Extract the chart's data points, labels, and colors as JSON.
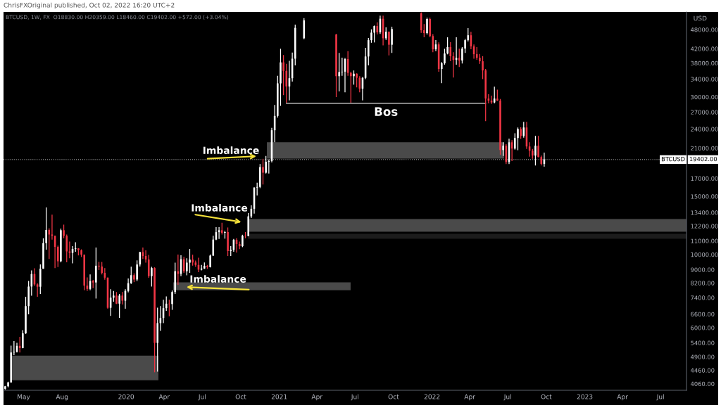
{
  "chart_data": {
    "type": "candlestick",
    "title": "ChrisFXOriginal published, Oct 02, 2022 16:20 UTC+2",
    "subtitle": "BTCUSD, 1W, FX  O18830.00 H20359.00 L18460.00 C19402.00 +572.00 (+3.04%)",
    "ylabel": "USD",
    "log": true,
    "x": [
      "2019-03-18",
      "2019-03-25",
      "2019-04-01",
      "2019-04-08",
      "2019-04-15",
      "2019-04-22",
      "2019-04-29",
      "2019-05-06",
      "2019-05-13",
      "2019-05-20",
      "2019-05-27",
      "2019-06-03",
      "2019-06-10",
      "2019-06-17",
      "2019-06-24",
      "2019-07-01",
      "2019-07-08",
      "2019-07-15",
      "2019-07-22",
      "2019-07-29",
      "2019-08-05",
      "2019-08-12",
      "2019-08-19",
      "2019-08-26",
      "2019-09-02",
      "2019-09-09",
      "2019-09-16",
      "2019-09-23",
      "2019-09-30",
      "2019-10-07",
      "2019-10-14",
      "2019-10-21",
      "2019-10-28",
      "2019-11-04",
      "2019-11-11",
      "2019-11-18",
      "2019-11-25",
      "2019-12-02",
      "2019-12-09",
      "2019-12-16",
      "2019-12-23",
      "2019-12-30",
      "2020-01-06",
      "2020-01-13",
      "2020-01-20",
      "2020-01-27",
      "2020-02-03",
      "2020-02-10",
      "2020-02-17",
      "2020-02-24",
      "2020-03-02",
      "2020-03-09",
      "2020-03-16",
      "2020-03-23",
      "2020-03-30",
      "2020-04-06",
      "2020-04-13",
      "2020-04-20",
      "2020-04-27",
      "2020-05-04",
      "2020-05-11",
      "2020-05-18",
      "2020-05-25",
      "2020-06-01",
      "2020-06-08",
      "2020-06-15",
      "2020-06-22",
      "2020-06-29",
      "2020-07-06",
      "2020-07-13",
      "2020-07-20",
      "2020-07-27",
      "2020-08-03",
      "2020-08-10",
      "2020-08-17",
      "2020-08-24",
      "2020-08-31",
      "2020-09-07",
      "2020-09-14",
      "2020-09-21",
      "2020-09-28",
      "2020-10-05",
      "2020-10-12",
      "2020-10-19",
      "2020-10-26",
      "2020-11-02",
      "2020-11-09",
      "2020-11-16",
      "2020-11-23",
      "2020-11-30",
      "2020-12-07",
      "2020-12-14",
      "2020-12-21",
      "2020-12-28",
      "2021-01-04",
      "2021-01-11",
      "2021-01-18",
      "2021-01-25",
      "2021-02-01",
      "2021-02-08",
      "2021-03-01",
      "2021-05-17",
      "2021-05-24",
      "2021-05-31",
      "2021-06-07",
      "2021-06-14",
      "2021-06-21",
      "2021-06-28",
      "2021-07-05",
      "2021-07-12",
      "2021-07-19",
      "2021-07-26",
      "2021-08-02",
      "2021-08-09",
      "2021-08-16",
      "2021-08-23",
      "2021-08-30",
      "2021-09-06",
      "2021-09-13",
      "2021-09-20",
      "2021-09-27",
      "2021-12-06",
      "2021-12-13",
      "2021-12-20",
      "2021-12-27",
      "2022-01-03",
      "2022-01-10",
      "2022-01-17",
      "2022-01-24",
      "2022-01-31",
      "2022-02-07",
      "2022-02-14",
      "2022-02-21",
      "2022-02-28",
      "2022-03-07",
      "2022-03-14",
      "2022-03-21",
      "2022-03-28",
      "2022-04-04",
      "2022-04-11",
      "2022-04-18",
      "2022-04-25",
      "2022-05-02",
      "2022-05-09",
      "2022-05-16",
      "2022-05-23",
      "2022-05-30",
      "2022-06-06",
      "2022-06-13",
      "2022-06-20",
      "2022-06-27",
      "2022-07-04",
      "2022-07-11",
      "2022-07-18",
      "2022-07-25",
      "2022-08-01",
      "2022-08-08",
      "2022-08-15",
      "2022-08-22",
      "2022-08-29",
      "2022-09-05",
      "2022-09-12",
      "2022-09-19",
      "2022-09-26"
    ],
    "ohlc": [
      [
        3920,
        4000,
        3900,
        3990
      ],
      [
        3990,
        4120,
        3960,
        4100
      ],
      [
        4100,
        5300,
        4090,
        5050
      ],
      [
        5050,
        5470,
        4960,
        5070
      ],
      [
        5070,
        5400,
        5050,
        5290
      ],
      [
        5290,
        5630,
        5050,
        5210
      ],
      [
        5210,
        5900,
        5200,
        5770
      ],
      [
        5770,
        7450,
        5750,
        6980
      ],
      [
        6980,
        8320,
        6590,
        8000
      ],
      [
        8000,
        8950,
        7500,
        8730
      ],
      [
        8730,
        9090,
        8040,
        8120
      ],
      [
        8120,
        8180,
        7450,
        7990
      ],
      [
        7990,
        9330,
        7600,
        9060
      ],
      [
        9060,
        11200,
        9050,
        10830
      ],
      [
        10830,
        13880,
        10350,
        11870
      ],
      [
        11870,
        12000,
        9700,
        11500
      ],
      [
        11500,
        13200,
        11100,
        11400
      ],
      [
        11400,
        11400,
        9100,
        10550
      ],
      [
        10550,
        10650,
        9170,
        9540
      ],
      [
        9540,
        11980,
        9470,
        11850
      ],
      [
        11850,
        12320,
        11200,
        11390
      ],
      [
        11390,
        11500,
        9470,
        10220
      ],
      [
        10220,
        10950,
        9750,
        10120
      ],
      [
        10120,
        10600,
        9400,
        10400
      ],
      [
        10400,
        10900,
        10200,
        10440
      ],
      [
        10440,
        10450,
        9940,
        10300
      ],
      [
        10300,
        10370,
        9830,
        9990
      ],
      [
        9990,
        10000,
        7800,
        8050
      ],
      [
        8050,
        8530,
        7760,
        7870
      ],
      [
        7870,
        8700,
        7800,
        8310
      ],
      [
        8310,
        8380,
        7910,
        8230
      ],
      [
        8230,
        10500,
        7360,
        9250
      ],
      [
        9250,
        9500,
        8980,
        9200
      ],
      [
        9200,
        9500,
        8700,
        8800
      ],
      [
        8800,
        9100,
        8390,
        8510
      ],
      [
        8510,
        8530,
        6850,
        6900
      ],
      [
        6900,
        7850,
        6520,
        7400
      ],
      [
        7400,
        7760,
        7200,
        7510
      ],
      [
        7510,
        7700,
        7080,
        7100
      ],
      [
        7100,
        7600,
        6430,
        7510
      ],
      [
        7510,
        7700,
        7060,
        7250
      ],
      [
        7250,
        7850,
        6850,
        7760
      ],
      [
        7760,
        8460,
        7680,
        8190
      ],
      [
        8190,
        9190,
        8150,
        8660
      ],
      [
        8660,
        8770,
        8250,
        8400
      ],
      [
        8400,
        9600,
        8300,
        9330
      ],
      [
        9330,
        10200,
        9200,
        10170
      ],
      [
        10170,
        10500,
        9700,
        9900
      ],
      [
        9900,
        10300,
        9450,
        9660
      ],
      [
        9660,
        9970,
        8500,
        8600
      ],
      [
        8600,
        9180,
        8000,
        9100
      ],
      [
        9100,
        9150,
        4400,
        5400
      ],
      [
        5400,
        6900,
        4420,
        6200
      ],
      [
        6200,
        6980,
        5870,
        6420
      ],
      [
        6420,
        7300,
        6200,
        6880
      ],
      [
        6880,
        7470,
        6750,
        7100
      ],
      [
        7100,
        7300,
        6500,
        7080
      ],
      [
        7080,
        7780,
        6800,
        7700
      ],
      [
        7700,
        9450,
        7600,
        8900
      ],
      [
        8900,
        10000,
        8100,
        8740
      ],
      [
        8740,
        9950,
        8600,
        9680
      ],
      [
        9680,
        9840,
        8800,
        8900
      ],
      [
        8900,
        9750,
        8650,
        9450
      ],
      [
        9450,
        10400,
        8800,
        9650
      ],
      [
        9650,
        9990,
        9250,
        9460
      ],
      [
        9460,
        9590,
        9180,
        9300
      ],
      [
        9300,
        9780,
        8850,
        9000
      ],
      [
        9000,
        9300,
        8950,
        9070
      ],
      [
        9070,
        9460,
        9040,
        9240
      ],
      [
        9240,
        9300,
        9050,
        9160
      ],
      [
        9160,
        10000,
        9140,
        9930
      ],
      [
        9930,
        11400,
        9900,
        11100
      ],
      [
        11100,
        12100,
        11050,
        11690
      ],
      [
        11690,
        12100,
        11150,
        11850
      ],
      [
        11850,
        12480,
        11500,
        11640
      ],
      [
        11640,
        11800,
        11170,
        11700
      ],
      [
        11700,
        12080,
        9900,
        10250
      ],
      [
        10250,
        10600,
        9900,
        10330
      ],
      [
        10330,
        11150,
        10200,
        11080
      ],
      [
        11080,
        11200,
        10140,
        10760
      ],
      [
        10760,
        10950,
        10380,
        10600
      ],
      [
        10600,
        11480,
        10530,
        11400
      ],
      [
        11400,
        11700,
        11200,
        11370
      ],
      [
        11370,
        13350,
        11360,
        13050
      ],
      [
        13050,
        14100,
        12900,
        13760
      ],
      [
        13760,
        16000,
        13300,
        15950
      ],
      [
        15950,
        16500,
        15100,
        16030
      ],
      [
        16030,
        18800,
        15900,
        18400
      ],
      [
        18400,
        19500,
        16300,
        17700
      ],
      [
        17700,
        19900,
        17600,
        19100
      ],
      [
        19100,
        19400,
        17600,
        19200
      ],
      [
        19200,
        24200,
        19000,
        23800
      ],
      [
        23800,
        28400,
        21900,
        26300
      ],
      [
        26300,
        34800,
        26000,
        33000
      ],
      [
        33000,
        42000,
        28200,
        38200
      ],
      [
        38200,
        40200,
        30400,
        36000
      ],
      [
        36000,
        37800,
        28800,
        32300
      ],
      [
        32300,
        38600,
        29300,
        34200
      ],
      [
        34200,
        40900,
        33400,
        39200
      ],
      [
        39200,
        49700,
        37400,
        48600
      ],
      [
        45200,
        52000,
        44900,
        51200
      ],
      [
        46400,
        46600,
        30000,
        34700
      ],
      [
        34700,
        40800,
        31200,
        35700
      ],
      [
        35700,
        39500,
        34800,
        35800
      ],
      [
        35800,
        39400,
        31000,
        39100
      ],
      [
        39100,
        41300,
        34800,
        35500
      ],
      [
        35500,
        35800,
        28800,
        34700
      ],
      [
        34700,
        36100,
        32700,
        35300
      ],
      [
        35300,
        35400,
        32100,
        34300
      ],
      [
        34300,
        34700,
        31000,
        31800
      ],
      [
        31800,
        34500,
        29300,
        34300
      ],
      [
        34300,
        42300,
        34000,
        39800
      ],
      [
        39800,
        45300,
        37400,
        44600
      ],
      [
        44600,
        48100,
        43800,
        47000
      ],
      [
        47000,
        49400,
        43900,
        49200
      ],
      [
        49200,
        50500,
        46400,
        47100
      ],
      [
        47100,
        52900,
        46600,
        51800
      ],
      [
        51800,
        52900,
        43000,
        45200
      ],
      [
        45200,
        48800,
        44700,
        47300
      ],
      [
        47300,
        47400,
        40100,
        43200
      ],
      [
        43200,
        49000,
        40800,
        48200
      ],
      [
        53760,
        54200,
        46900,
        47800
      ],
      [
        47800,
        49900,
        45500,
        46850
      ],
      [
        46850,
        52200,
        46400,
        51700
      ],
      [
        51700,
        52200,
        45500,
        45900
      ],
      [
        45900,
        46500,
        41000,
        41850
      ],
      [
        41850,
        44600,
        41300,
        43300
      ],
      [
        43300,
        43900,
        35800,
        36480
      ],
      [
        36480,
        38300,
        33050,
        37950
      ],
      [
        37950,
        42000,
        37600,
        40640
      ],
      [
        40640,
        45500,
        40400,
        42500
      ],
      [
        42500,
        44000,
        38500,
        39860
      ],
      [
        39860,
        41000,
        34380,
        38880
      ],
      [
        38880,
        45500,
        37600,
        39450
      ],
      [
        39450,
        42000,
        37000,
        38700
      ],
      [
        38700,
        42500,
        37900,
        42060
      ],
      [
        42060,
        45000,
        40800,
        44600
      ],
      [
        44600,
        48500,
        44200,
        46150
      ],
      [
        46150,
        47300,
        41850,
        42700
      ],
      [
        42700,
        43300,
        39200,
        40440
      ],
      [
        40440,
        42500,
        38900,
        39450
      ],
      [
        39450,
        40500,
        37800,
        38500
      ],
      [
        38500,
        39900,
        34000,
        36120
      ],
      [
        36120,
        36500,
        25360,
        29680
      ],
      [
        29680,
        30600,
        28700,
        29250
      ],
      [
        29250,
        30300,
        28600,
        28900
      ],
      [
        28900,
        32260,
        28700,
        29680
      ],
      [
        29680,
        31600,
        29200,
        29250
      ],
      [
        29250,
        29600,
        20040,
        20730
      ],
      [
        20730,
        21900,
        19900,
        21360
      ],
      [
        21360,
        21600,
        18800,
        19070
      ],
      [
        19070,
        22430,
        18800,
        21880
      ],
      [
        21880,
        22200,
        19200,
        20940
      ],
      [
        20940,
        23300,
        20800,
        22540
      ],
      [
        22540,
        24260,
        20700,
        24000
      ],
      [
        24000,
        24300,
        22400,
        22880
      ],
      [
        22880,
        25240,
        22600,
        24260
      ],
      [
        24260,
        25240,
        20900,
        21250
      ],
      [
        21250,
        21900,
        19800,
        20630
      ],
      [
        20630,
        20900,
        19500,
        19940
      ],
      [
        19940,
        22880,
        18610,
        21360
      ],
      [
        21360,
        22880,
        19700,
        19740
      ],
      [
        19740,
        19950,
        18610,
        18830
      ],
      [
        18830,
        20359,
        18460,
        19402
      ]
    ],
    "colors": [
      "#ffffff",
      "#ffffff",
      "#ffffff",
      "#ffffff",
      "#ffffff",
      "#f23645",
      "#ffffff",
      "#ffffff",
      "#ffffff",
      "#ffffff",
      "#f23645",
      "#f23645",
      "#ffffff",
      "#ffffff",
      "#ffffff",
      "#f23645",
      "#f23645",
      "#f23645",
      "#f23645",
      "#ffffff",
      "#f23645",
      "#f23645",
      "#f23645",
      "#ffffff",
      "#ffffff",
      "#f23645",
      "#f23645",
      "#f23645",
      "#f23645",
      "#ffffff",
      "#f23645",
      "#ffffff",
      "#f23645",
      "#f23645",
      "#f23645",
      "#f23645",
      "#ffffff",
      "#ffffff",
      "#f23645",
      "#ffffff",
      "#f23645",
      "#ffffff",
      "#ffffff",
      "#ffffff",
      "#f23645",
      "#ffffff",
      "#ffffff",
      "#f23645",
      "#f23645",
      "#f23645",
      "#ffffff",
      "#f23645",
      "#ffffff",
      "#ffffff",
      "#ffffff",
      "#ffffff",
      "#f23645",
      "#ffffff",
      "#ffffff",
      "#f23645",
      "#ffffff",
      "#f23645",
      "#ffffff",
      "#ffffff",
      "#f23645",
      "#f23645",
      "#f23645",
      "#ffffff",
      "#ffffff",
      "#f23645",
      "#ffffff",
      "#ffffff",
      "#ffffff",
      "#ffffff",
      "#f23645",
      "#ffffff",
      "#f23645",
      "#ffffff",
      "#ffffff",
      "#f23645",
      "#f23645",
      "#ffffff",
      "#f23645",
      "#ffffff",
      "#ffffff",
      "#ffffff",
      "#ffffff",
      "#ffffff",
      "#f23645",
      "#ffffff",
      "#ffffff",
      "#ffffff",
      "#ffffff",
      "#ffffff",
      "#ffffff",
      "#f23645",
      "#f23645",
      "#ffffff",
      "#ffffff",
      "#ffffff",
      "#ffffff",
      "#f23645",
      "#ffffff",
      "#ffffff",
      "#ffffff",
      "#f23645",
      "#f23645",
      "#ffffff",
      "#f23645",
      "#f23645",
      "#ffffff",
      "#ffffff",
      "#ffffff",
      "#ffffff",
      "#ffffff",
      "#f23645",
      "#ffffff",
      "#f23645",
      "#ffffff",
      "#f23645",
      "#ffffff",
      "#f23645",
      "#f23645",
      "#ffffff",
      "#f23645",
      "#f23645",
      "#ffffff",
      "#f23645",
      "#ffffff",
      "#ffffff",
      "#ffffff",
      "#f23645",
      "#f23645",
      "#ffffff",
      "#f23645",
      "#ffffff",
      "#ffffff",
      "#ffffff",
      "#f23645",
      "#f23645",
      "#f23645",
      "#f23645",
      "#f23645",
      "#f23645",
      "#f23645",
      "#f23645",
      "#ffffff",
      "#f23645",
      "#f23645",
      "#ffffff",
      "#f23645",
      "#ffffff",
      "#f23645",
      "#ffffff",
      "#ffffff",
      "#f23645",
      "#ffffff",
      "#f23645",
      "#f23645",
      "#f23645",
      "#ffffff",
      "#f23645",
      "#f23645",
      "#ffffff"
    ],
    "series": [
      {
        "type": "line",
        "x": [
          "2021-01-18",
          "2022-05-09"
        ],
        "values": [
          28700,
          28700
        ],
        "color": "#b0b0b0"
      }
    ],
    "xlim": [
      "2019-03-14",
      "2023-09-01"
    ],
    "ylim": [
      3880,
      54300
    ],
    "xticks": [
      {
        "value": "2019-05-01",
        "label": "May"
      },
      {
        "value": "2019-08-01",
        "label": "Aug"
      },
      {
        "value": "2020-01-01",
        "label": "2020"
      },
      {
        "value": "2020-04-01",
        "label": "Apr"
      },
      {
        "value": "2020-07-01",
        "label": "Jul"
      },
      {
        "value": "2020-10-01",
        "label": "Oct"
      },
      {
        "value": "2021-01-01",
        "label": "2021"
      },
      {
        "value": "2021-04-01",
        "label": "Apr"
      },
      {
        "value": "2021-07-01",
        "label": "Jul"
      },
      {
        "value": "2021-10-01",
        "label": "Oct"
      },
      {
        "value": "2022-01-01",
        "label": "2022"
      },
      {
        "value": "2022-04-01",
        "label": "Apr"
      },
      {
        "value": "2022-07-01",
        "label": "Jul"
      },
      {
        "value": "2022-10-01",
        "label": "Oct"
      },
      {
        "value": "2023-01-01",
        "label": "2023"
      },
      {
        "value": "2023-04-01",
        "label": "Apr"
      },
      {
        "value": "2023-07-01",
        "label": "Jul"
      }
    ],
    "yticks": [
      {
        "value": 4060,
        "label": "4060.00"
      },
      {
        "value": 4460,
        "label": "4460.00"
      },
      {
        "value": 4900,
        "label": "4900.00"
      },
      {
        "value": 5400,
        "label": "5400.00"
      },
      {
        "value": 6000,
        "label": "6000.00"
      },
      {
        "value": 6600,
        "label": "6600.00"
      },
      {
        "value": 7400,
        "label": "7400.00"
      },
      {
        "value": 8200,
        "label": "8200.00"
      },
      {
        "value": 9000,
        "label": "9000.00"
      },
      {
        "value": 10000,
        "label": "10000.00"
      },
      {
        "value": 11000,
        "label": "11000.00"
      },
      {
        "value": 12200,
        "label": "12200.00"
      },
      {
        "value": 13400,
        "label": "13400.00"
      },
      {
        "value": 15000,
        "label": "15000.00"
      },
      {
        "value": 17000,
        "label": "17000.00"
      },
      {
        "value": 21000,
        "label": "21000.00"
      },
      {
        "value": 24000,
        "label": "24000.00"
      },
      {
        "value": 27000,
        "label": "27000.00"
      },
      {
        "value": 30000,
        "label": "30000.00"
      },
      {
        "value": 34000,
        "label": "34000.00"
      },
      {
        "value": 38000,
        "label": "38000.00"
      },
      {
        "value": 42000,
        "label": "42000.00"
      },
      {
        "value": 48000,
        "label": "48000.00"
      }
    ],
    "ref_lines": [
      {
        "axis": "y",
        "value": 19402,
        "label": "BTCUSD",
        "color": "#9e9e9e",
        "line_style": "dotted"
      }
    ],
    "bands": [
      {
        "axis": "y",
        "from": 4161,
        "to": 4943,
        "color": "#4a4a4a"
      },
      {
        "axis": "y",
        "from": 7800,
        "to": 8240,
        "color": "#4a4a4a"
      },
      {
        "axis": "y",
        "from": 11170,
        "to": 11560,
        "color": "#1c1c1c"
      },
      {
        "axis": "y",
        "from": 11730,
        "to": 12810,
        "color": "#4a4a4a"
      },
      {
        "axis": "y",
        "from": 19540,
        "to": 21890,
        "color": "#4a4a4a"
      }
    ],
    "annotations": [
      "Imbalance",
      "Imbalance",
      "Imbalance",
      "Bos",
      "19402.00"
    ]
  }
}
